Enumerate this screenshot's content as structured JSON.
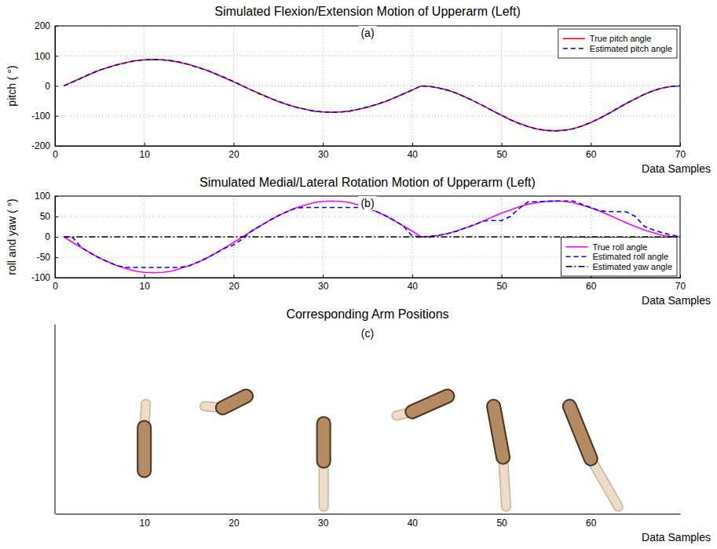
{
  "chart_data": [
    {
      "type": "line",
      "title": "Simulated Flexion/Extension Motion of Upperarm (Left)",
      "annotation": "(a)",
      "x_label": "Data Samples",
      "y_label": "pitch ( °)",
      "x": [
        1,
        2,
        3,
        4,
        5,
        6,
        7,
        8,
        9,
        10,
        11,
        12,
        13,
        14,
        15,
        16,
        17,
        18,
        19,
        20,
        21,
        22,
        23,
        24,
        25,
        26,
        27,
        28,
        29,
        30,
        31,
        32,
        33,
        34,
        35,
        36,
        37,
        38,
        39,
        40,
        41,
        42,
        43,
        44,
        45,
        46,
        47,
        48,
        49,
        50,
        51,
        52,
        53,
        54,
        55,
        56,
        57,
        58,
        59,
        60,
        61,
        62,
        63,
        64,
        65,
        66,
        67,
        68,
        69,
        70
      ],
      "xlim": [
        0,
        70
      ],
      "xticks": [
        0,
        10,
        20,
        30,
        40,
        50,
        60,
        70
      ],
      "ylim": [
        -200,
        200
      ],
      "yticks": [
        -200,
        -100,
        0,
        100,
        200
      ],
      "grid": true,
      "legend": "upper right",
      "series": [
        {
          "name": "True pitch angle",
          "color": "#ff0000",
          "line_style": "solid",
          "values": [
            0,
            14,
            27,
            40,
            52,
            62,
            71,
            78,
            84,
            87,
            88,
            87,
            84,
            78,
            71,
            62,
            52,
            40,
            27,
            14,
            0,
            -14,
            -27,
            -40,
            -52,
            -62,
            -71,
            -78,
            -84,
            -87,
            -88,
            -87,
            -84,
            -78,
            -71,
            -62,
            -52,
            -40,
            -27,
            -14,
            0,
            -2,
            -7,
            -14,
            -25,
            -38,
            -52,
            -67,
            -83,
            -98,
            -113,
            -125,
            -136,
            -144,
            -148,
            -150,
            -148,
            -143,
            -134,
            -122,
            -108,
            -92,
            -75,
            -58,
            -43,
            -28,
            -16,
            -7,
            -2,
            0
          ]
        },
        {
          "name": "Estimated pitch angle",
          "color": "#0000ff",
          "line_style": "dashed",
          "values": [
            0,
            13,
            27,
            41,
            53,
            62,
            70,
            78,
            84,
            87,
            88,
            87,
            84,
            79,
            71,
            61,
            52,
            40,
            28,
            14,
            0,
            -14,
            -28,
            -40,
            -51,
            -62,
            -71,
            -78,
            -84,
            -87,
            -88,
            -87,
            -84,
            -78,
            -70,
            -62,
            -52,
            -40,
            -27,
            -14,
            0,
            -2,
            -7,
            -15,
            -25,
            -38,
            -52,
            -67,
            -83,
            -98,
            -113,
            -126,
            -136,
            -144,
            -149,
            -150,
            -148,
            -143,
            -134,
            -122,
            -108,
            -92,
            -75,
            -58,
            -43,
            -28,
            -16,
            -7,
            -2,
            0
          ]
        }
      ]
    },
    {
      "type": "line",
      "title": "Simulated Medial/Lateral Rotation Motion of Upperarm (Left)",
      "annotation": "(b)",
      "x_label": "Data Samples",
      "y_label": "roll and yaw ( °)",
      "x": [
        1,
        2,
        3,
        4,
        5,
        6,
        7,
        8,
        9,
        10,
        11,
        12,
        13,
        14,
        15,
        16,
        17,
        18,
        19,
        20,
        21,
        22,
        23,
        24,
        25,
        26,
        27,
        28,
        29,
        30,
        31,
        32,
        33,
        34,
        35,
        36,
        37,
        38,
        39,
        40,
        41,
        42,
        43,
        44,
        45,
        46,
        47,
        48,
        49,
        50,
        51,
        52,
        53,
        54,
        55,
        56,
        57,
        58,
        59,
        60,
        61,
        62,
        63,
        64,
        65,
        66,
        67,
        68,
        69,
        70
      ],
      "xlim": [
        0,
        70
      ],
      "xticks": [
        0,
        10,
        20,
        30,
        40,
        50,
        60,
        70
      ],
      "ylim": [
        -100,
        100
      ],
      "yticks": [
        -100,
        -50,
        0,
        50,
        100
      ],
      "grid": true,
      "legend": "lower right",
      "series": [
        {
          "name": "True roll angle",
          "color": "#ff00ff",
          "line_style": "solid",
          "values": [
            0,
            -14,
            -27,
            -40,
            -52,
            -62,
            -71,
            -78,
            -84,
            -87,
            -88,
            -87,
            -84,
            -78,
            -71,
            -62,
            -52,
            -40,
            -27,
            -14,
            0,
            14,
            27,
            40,
            52,
            62,
            71,
            78,
            84,
            87,
            88,
            87,
            84,
            78,
            71,
            62,
            52,
            40,
            27,
            14,
            0,
            1,
            4,
            8,
            15,
            22,
            30,
            39,
            49,
            58,
            66,
            74,
            80,
            84,
            87,
            88,
            87,
            84,
            78,
            71,
            63,
            54,
            44,
            34,
            25,
            17,
            10,
            4,
            1,
            0
          ]
        },
        {
          "name": "Estimated roll angle",
          "color": "#0000ff",
          "line_style": "dashed",
          "values": [
            0,
            -2,
            -27,
            -40,
            -52,
            -62,
            -71,
            -75,
            -75,
            -75,
            -75,
            -75,
            -75,
            -75,
            -71,
            -62,
            -52,
            -40,
            -28,
            -20,
            -5,
            14,
            27,
            40,
            52,
            62,
            71,
            72,
            72,
            72,
            72,
            72,
            72,
            72,
            71,
            62,
            52,
            40,
            27,
            2,
            0,
            1,
            4,
            8,
            14,
            22,
            30,
            39,
            40,
            40,
            50,
            70,
            86,
            86,
            87,
            88,
            88,
            88,
            80,
            72,
            64,
            62,
            62,
            61,
            50,
            26,
            17,
            10,
            5,
            0
          ]
        },
        {
          "name": "Estimated yaw angle",
          "color": "#000000",
          "line_style": "dashdot",
          "values": [
            0,
            0,
            0,
            0,
            0,
            0,
            0,
            0,
            0,
            0,
            0,
            0,
            0,
            0,
            0,
            0,
            0,
            0,
            0,
            0,
            0,
            0,
            0,
            0,
            0,
            0,
            0,
            0,
            0,
            0,
            0,
            0,
            0,
            0,
            0,
            0,
            0,
            0,
            0,
            0,
            0,
            0,
            0,
            0,
            0,
            0,
            0,
            0,
            0,
            0,
            0,
            0,
            0,
            0,
            0,
            0,
            0,
            0,
            0,
            0,
            0,
            0,
            0,
            0,
            0,
            0,
            0,
            0,
            0,
            0
          ]
        }
      ]
    },
    {
      "type": "images",
      "title": "Corresponding Arm Positions",
      "annotation": "(c)",
      "x_label": "Data Samples",
      "xlim": [
        0,
        70
      ],
      "xticks": [
        10,
        20,
        30,
        40,
        50,
        60
      ]
    }
  ]
}
